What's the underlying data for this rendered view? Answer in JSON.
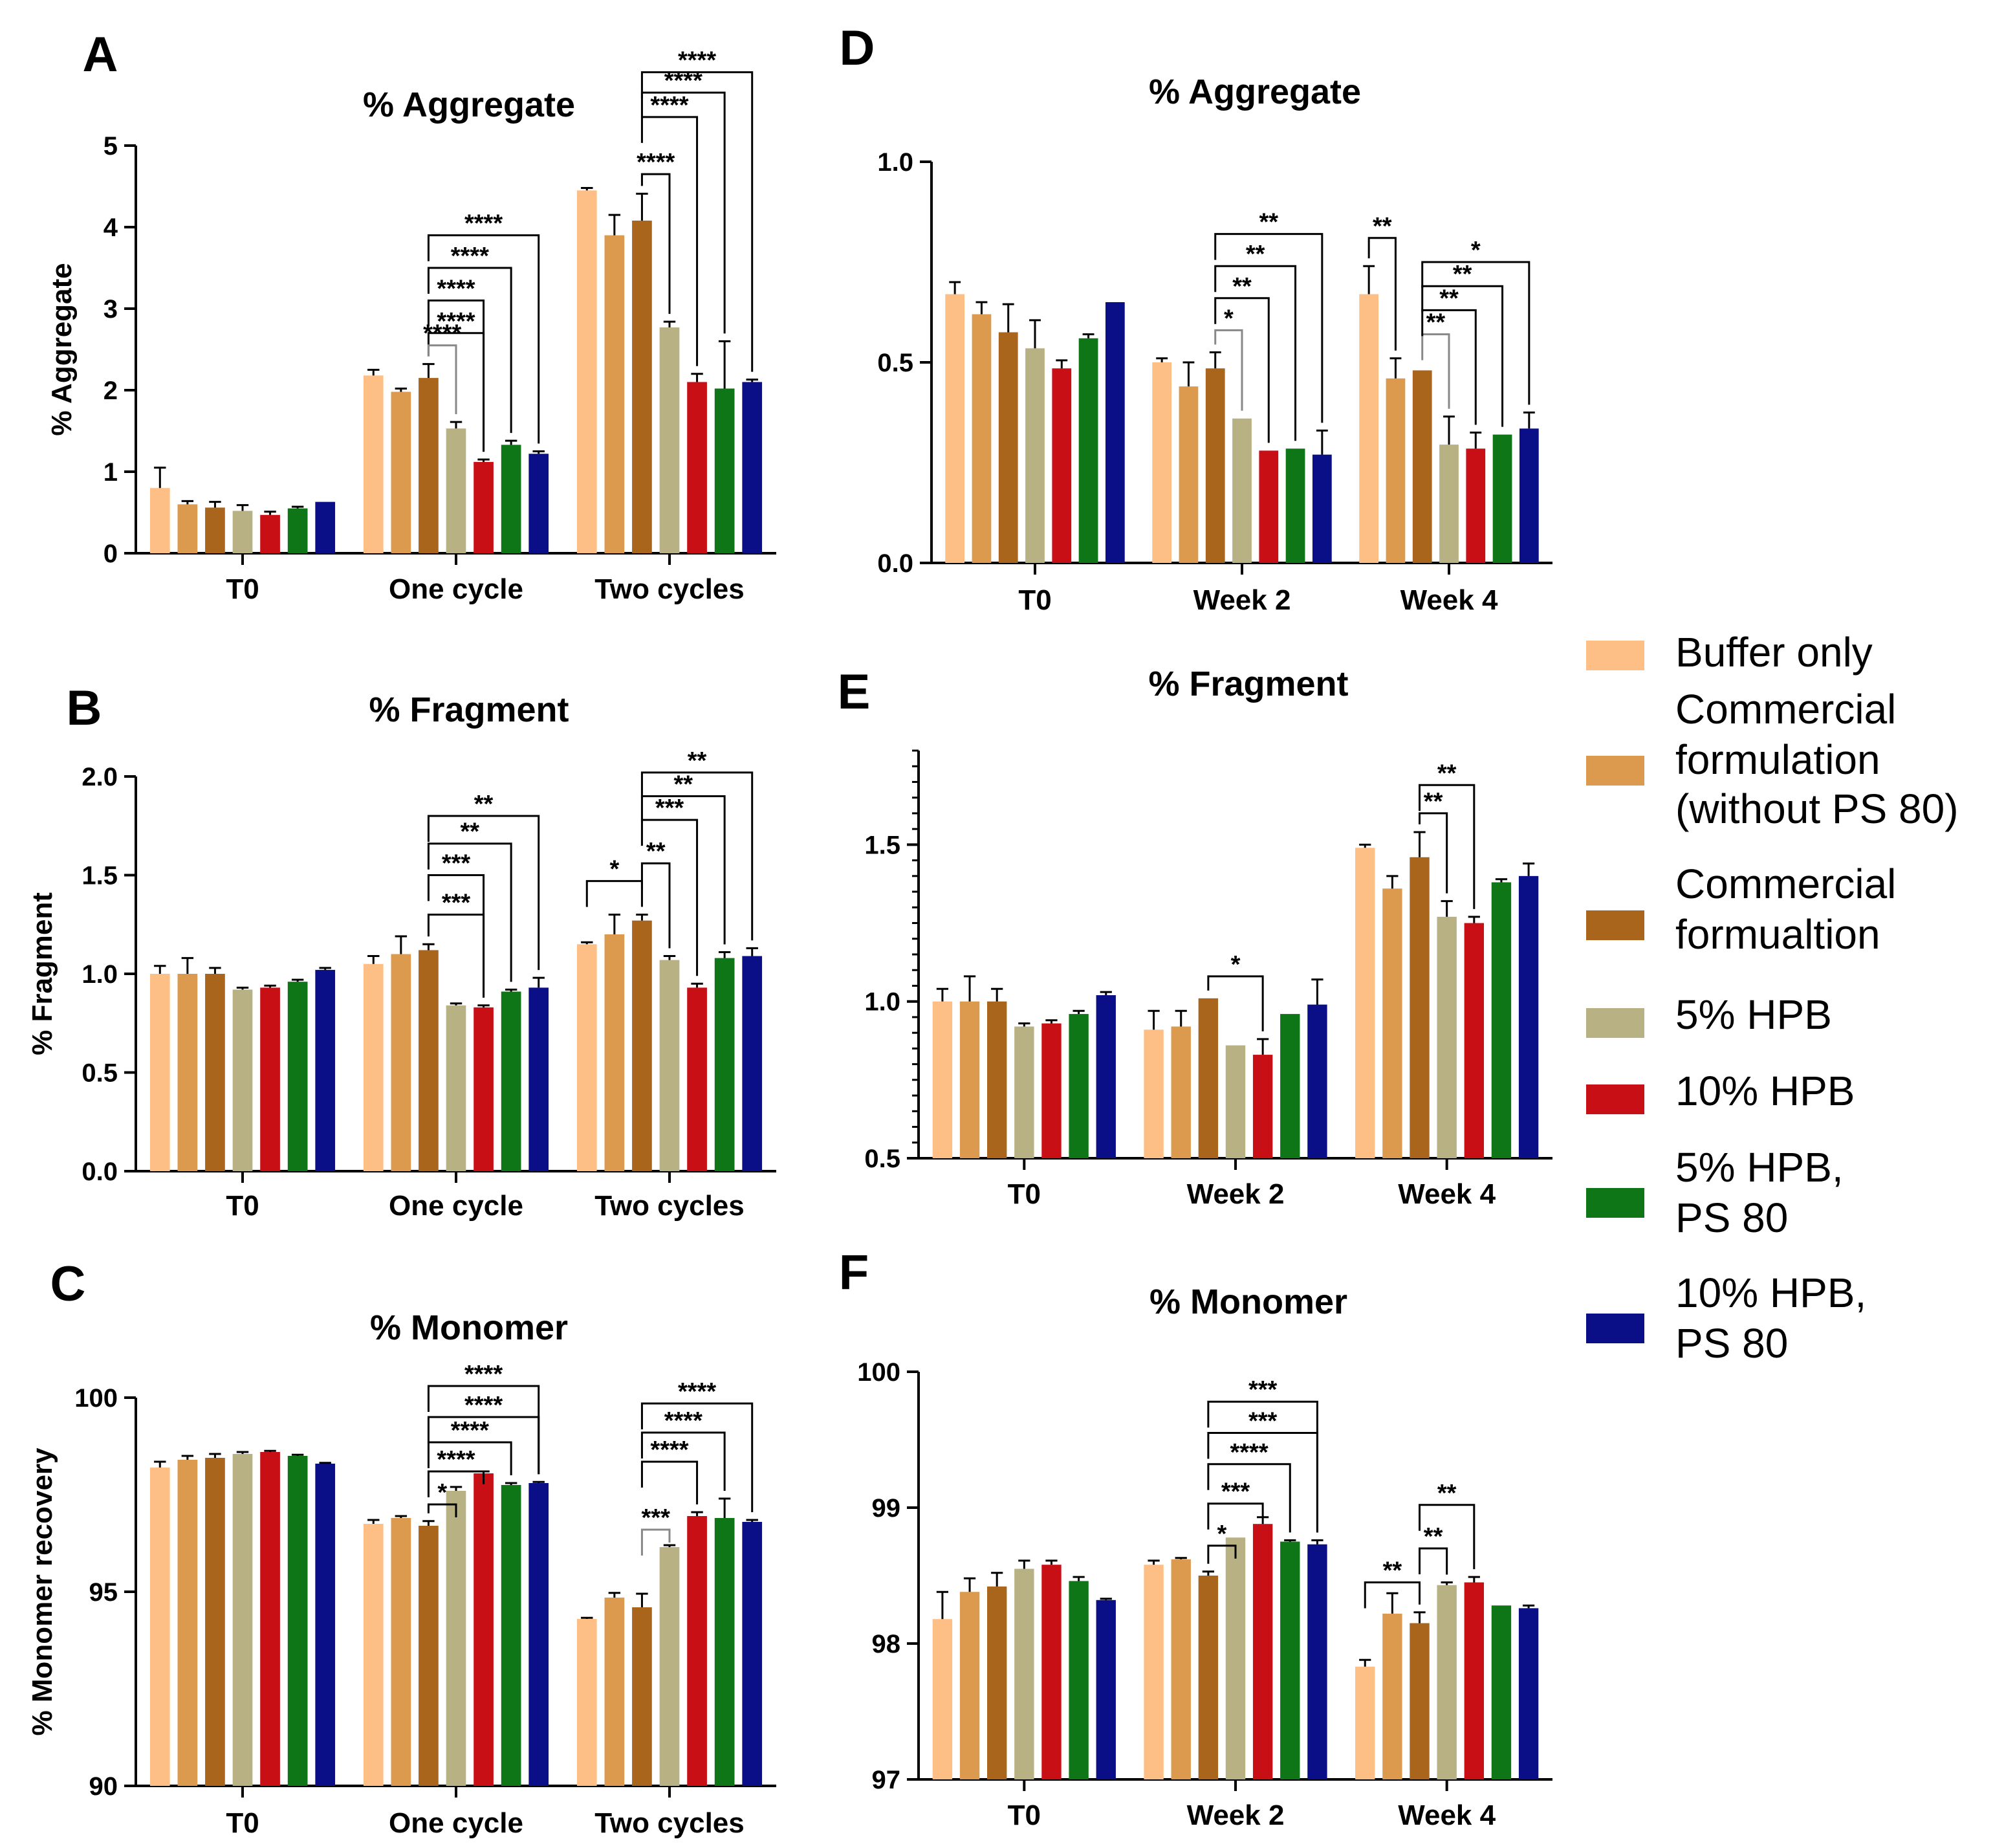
{
  "legend": [
    {
      "name": "Buffer only",
      "color": "#FDBF86"
    },
    {
      "name": "Commercial formulation (without PS 80)",
      "color": "#DC9A4E"
    },
    {
      "name": "Commercial formualtion",
      "color": "#A8651B"
    },
    {
      "name": "5% HPB",
      "color": "#B8B184"
    },
    {
      "name": "10% HPB",
      "color": "#C90F16"
    },
    {
      "name": "5% HPB, PS 80",
      "color": "#0E7616"
    },
    {
      "name": "10% HPB, PS 80",
      "color": "#0B0F87"
    }
  ],
  "legend_lines": [
    [
      "Buffer only"
    ],
    [
      "Commercial",
      "formulation",
      "(without PS 80)"
    ],
    [
      "Commercial",
      "formualtion"
    ],
    [
      "5% HPB"
    ],
    [
      "10% HPB"
    ],
    [
      "5% HPB,",
      "PS 80"
    ],
    [
      "10% HPB,",
      "PS 80"
    ]
  ],
  "chart_data": [
    {
      "panel": "A",
      "type": "bar",
      "title": "% Aggregate",
      "xlabel": "",
      "ylabel": "% Aggregate",
      "ylim": [
        0,
        5
      ],
      "yticks": [
        0,
        1,
        2,
        3,
        4,
        5
      ],
      "ytick_labels": [
        "0",
        "1",
        "2",
        "3",
        "4",
        "5"
      ],
      "categories": [
        "T0",
        "One cycle",
        "Two cycles"
      ],
      "series": [
        {
          "name": "Buffer only",
          "values": [
            0.8,
            2.18,
            4.45
          ],
          "errors": [
            0.25,
            0.07,
            0.03
          ]
        },
        {
          "name": "Commercial formulation (without PS 80)",
          "values": [
            0.6,
            1.98,
            3.9
          ],
          "errors": [
            0.04,
            0.04,
            0.25
          ]
        },
        {
          "name": "Commercial formualtion",
          "values": [
            0.56,
            2.15,
            4.08
          ],
          "errors": [
            0.07,
            0.17,
            0.33
          ]
        },
        {
          "name": "5% HPB",
          "values": [
            0.52,
            1.53,
            2.77
          ],
          "errors": [
            0.07,
            0.08,
            0.07
          ]
        },
        {
          "name": "10% HPB",
          "values": [
            0.47,
            1.12,
            2.1
          ],
          "errors": [
            0.04,
            0.03,
            0.1
          ]
        },
        {
          "name": "5% HPB, PS 80",
          "values": [
            0.55,
            1.33,
            2.02
          ],
          "errors": [
            0.02,
            0.05,
            0.58
          ]
        },
        {
          "name": "10% HPB, PS 80",
          "values": [
            0.63,
            1.22,
            2.1
          ],
          "errors": [
            0.0,
            0.03,
            0.03
          ]
        }
      ],
      "significance": [
        {
          "cat": 1,
          "from": 2,
          "to": 4,
          "label": "****",
          "y": 2.7
        },
        {
          "cat": 1,
          "from": 2,
          "to": 3,
          "label": "****",
          "y": 2.55,
          "gray": true
        },
        {
          "cat": 1,
          "from": 2,
          "to": 6,
          "label": "****",
          "y": 3.9
        },
        {
          "cat": 1,
          "from": 2,
          "to": 5,
          "label": "****",
          "y": 3.5
        },
        {
          "cat": 1,
          "from": 2,
          "to": 4,
          "label": "****",
          "y": 3.1
        },
        {
          "cat": 1,
          "from": 2,
          "to": 3,
          "label": "****",
          "y": 2.7,
          "hide": true
        },
        {
          "cat": 2,
          "from": 2,
          "to": 3,
          "label": "****",
          "y": 4.65
        },
        {
          "cat": 2,
          "from": 2,
          "to": 4,
          "label": "****",
          "y": 5.35
        },
        {
          "cat": 2,
          "from": 2,
          "to": 5,
          "label": "****",
          "y": 5.65
        },
        {
          "cat": 2,
          "from": 2,
          "to": 6,
          "label": "****",
          "y": 5.9
        }
      ]
    },
    {
      "panel": "B",
      "type": "bar",
      "title": "% Fragment",
      "xlabel": "",
      "ylabel": "% Fragment",
      "ylim": [
        0,
        2
      ],
      "yticks": [
        0,
        0.5,
        1,
        1.5,
        2
      ],
      "ytick_labels": [
        "0.0",
        "0.5",
        "1.0",
        "1.5",
        "2.0"
      ],
      "categories": [
        "T0",
        "One cycle",
        "Two cycles"
      ],
      "series": [
        {
          "name": "Buffer only",
          "values": [
            1.0,
            1.05,
            1.15
          ],
          "errors": [
            0.04,
            0.04,
            0.01
          ]
        },
        {
          "name": "Commercial formulation (without PS 80)",
          "values": [
            1.0,
            1.1,
            1.2
          ],
          "errors": [
            0.08,
            0.09,
            0.1
          ]
        },
        {
          "name": "Commercial formualtion",
          "values": [
            1.0,
            1.12,
            1.27
          ],
          "errors": [
            0.03,
            0.03,
            0.03
          ]
        },
        {
          "name": "5% HPB",
          "values": [
            0.92,
            0.84,
            1.07
          ],
          "errors": [
            0.01,
            0.01,
            0.02
          ]
        },
        {
          "name": "10% HPB",
          "values": [
            0.93,
            0.83,
            0.93
          ],
          "errors": [
            0.01,
            0.01,
            0.02
          ]
        },
        {
          "name": "5% HPB, PS 80",
          "values": [
            0.96,
            0.91,
            1.08
          ],
          "errors": [
            0.01,
            0.01,
            0.03
          ]
        },
        {
          "name": "10% HPB, PS 80",
          "values": [
            1.02,
            0.93,
            1.09
          ],
          "errors": [
            0.01,
            0.05,
            0.04
          ]
        }
      ],
      "significance": [
        {
          "cat": 1,
          "from": 2,
          "to": 4,
          "label": "***",
          "y": 1.3
        },
        {
          "cat": 1,
          "from": 2,
          "to": 4,
          "label": "***",
          "y": 1.5
        },
        {
          "cat": 1,
          "from": 2,
          "to": 5,
          "label": "**",
          "y": 1.66
        },
        {
          "cat": 1,
          "from": 2,
          "to": 6,
          "label": "**",
          "y": 1.8
        },
        {
          "cat": 2,
          "from": 0,
          "to": 2,
          "label": "*",
          "y": 1.47,
          "spanStart": true
        },
        {
          "cat": 2,
          "from": 2,
          "to": 3,
          "label": "**",
          "y": 1.56
        },
        {
          "cat": 2,
          "from": 2,
          "to": 4,
          "label": "***",
          "y": 1.78
        },
        {
          "cat": 2,
          "from": 2,
          "to": 5,
          "label": "**",
          "y": 1.9
        },
        {
          "cat": 2,
          "from": 2,
          "to": 6,
          "label": "**",
          "y": 2.02
        }
      ]
    },
    {
      "panel": "C",
      "type": "bar",
      "title": "% Monomer",
      "xlabel": "",
      "ylabel": "% Monomer recovery",
      "ylim": [
        90,
        100
      ],
      "yticks": [
        90,
        95,
        100
      ],
      "ytick_labels": [
        "90",
        "95",
        "100"
      ],
      "categories": [
        "T0",
        "One cycle",
        "Two cycles"
      ],
      "series": [
        {
          "name": "Buffer only",
          "values": [
            98.2,
            96.75,
            94.3
          ],
          "errors": [
            0.15,
            0.1,
            0.03
          ]
        },
        {
          "name": "Commercial formulation (without PS 80)",
          "values": [
            98.4,
            96.9,
            94.85
          ],
          "errors": [
            0.1,
            0.05,
            0.12
          ]
        },
        {
          "name": "Commercial formualtion",
          "values": [
            98.45,
            96.7,
            94.6
          ],
          "errors": [
            0.1,
            0.12,
            0.35
          ]
        },
        {
          "name": "5% HPB",
          "values": [
            98.55,
            97.6,
            96.15
          ],
          "errors": [
            0.05,
            0.1,
            0.05
          ]
        },
        {
          "name": "10% HPB",
          "values": [
            98.6,
            98.05,
            96.95
          ],
          "errors": [
            0.03,
            0.05,
            0.1
          ]
        },
        {
          "name": "5% HPB, PS 80",
          "values": [
            98.5,
            97.75,
            96.9
          ],
          "errors": [
            0.03,
            0.05,
            0.5
          ]
        },
        {
          "name": "10% HPB, PS 80",
          "values": [
            98.3,
            97.8,
            96.8
          ],
          "errors": [
            0.02,
            0.03,
            0.05
          ]
        }
      ],
      "significance": [
        {
          "cat": 1,
          "from": 2,
          "to": 3,
          "label": "*",
          "y": 97.25,
          "rev": true
        },
        {
          "cat": 1,
          "from": 2,
          "to": 4,
          "label": "****",
          "y": 98.1
        },
        {
          "cat": 1,
          "from": 2,
          "to": 5,
          "label": "****",
          "y": 98.85
        },
        {
          "cat": 1,
          "from": 2,
          "to": 6,
          "label": "****",
          "y": 99.5
        },
        {
          "cat": 1,
          "from": 2,
          "to": 7,
          "label": "****",
          "y": 100.3
        },
        {
          "cat": 2,
          "from": 2,
          "to": 3,
          "label": "***",
          "y": 96.6,
          "gray": true
        },
        {
          "cat": 2,
          "from": 2,
          "to": 4,
          "label": "****",
          "y": 98.35
        },
        {
          "cat": 2,
          "from": 2,
          "to": 5,
          "label": "****",
          "y": 99.1
        },
        {
          "cat": 2,
          "from": 2,
          "to": 6,
          "label": "****",
          "y": 99.85
        }
      ]
    },
    {
      "panel": "D",
      "type": "bar",
      "title": "% Aggregate",
      "xlabel": "",
      "ylabel": "",
      "ylim": [
        0,
        1
      ],
      "yticks": [
        0,
        0.5,
        1
      ],
      "ytick_labels": [
        "0.0",
        "0.5",
        "1.0"
      ],
      "categories": [
        "T0",
        "Week 2",
        "Week 4"
      ],
      "series": [
        {
          "name": "Buffer only",
          "values": [
            0.67,
            0.5,
            0.67
          ],
          "errors": [
            0.03,
            0.01,
            0.07
          ]
        },
        {
          "name": "Commercial formulation (without PS 80)",
          "values": [
            0.62,
            0.44,
            0.46
          ],
          "errors": [
            0.03,
            0.06,
            0.05
          ]
        },
        {
          "name": "Commercial formualtion",
          "values": [
            0.575,
            0.485,
            0.48
          ],
          "errors": [
            0.07,
            0.04,
            0.0
          ]
        },
        {
          "name": "5% HPB",
          "values": [
            0.535,
            0.36,
            0.295
          ],
          "errors": [
            0.07,
            0.0,
            0.07
          ]
        },
        {
          "name": "10% HPB",
          "values": [
            0.485,
            0.28,
            0.285
          ],
          "errors": [
            0.02,
            0.0,
            0.04
          ]
        },
        {
          "name": "5% HPB, PS 80",
          "values": [
            0.56,
            0.285,
            0.32
          ],
          "errors": [
            0.01,
            0.0,
            0.0
          ]
        },
        {
          "name": "10% HPB, PS 80",
          "values": [
            0.65,
            0.27,
            0.335
          ],
          "errors": [
            0.0,
            0.06,
            0.04
          ]
        }
      ],
      "significance": [
        {
          "cat": 1,
          "from": 2,
          "to": 3,
          "label": "*",
          "y": 0.58,
          "gray": true
        },
        {
          "cat": 1,
          "from": 2,
          "to": 4,
          "label": "**",
          "y": 0.66
        },
        {
          "cat": 1,
          "from": 2,
          "to": 5,
          "label": "**",
          "y": 0.74
        },
        {
          "cat": 1,
          "from": 2,
          "to": 6,
          "label": "**",
          "y": 0.82
        },
        {
          "cat": 2,
          "from": 0,
          "to": 1,
          "label": "**",
          "y": 0.81
        },
        {
          "cat": 2,
          "from": 2,
          "to": 3,
          "label": "**",
          "y": 0.57,
          "gray": true
        },
        {
          "cat": 2,
          "from": 2,
          "to": 4,
          "label": "**",
          "y": 0.63
        },
        {
          "cat": 2,
          "from": 2,
          "to": 5,
          "label": "**",
          "y": 0.69
        },
        {
          "cat": 2,
          "from": 2,
          "to": 6,
          "label": "*",
          "y": 0.75
        }
      ]
    },
    {
      "panel": "E",
      "type": "bar",
      "title": "% Fragment",
      "xlabel": "",
      "ylabel": "",
      "ylim": [
        0.5,
        1.8
      ],
      "yticks": [
        0.5,
        1,
        1.5
      ],
      "ytick_labels": [
        "0.5",
        "1.0",
        "1.5"
      ],
      "categories": [
        "T0",
        "Week 2",
        "Week 4"
      ],
      "series": [
        {
          "name": "Buffer only",
          "values": [
            1.0,
            0.91,
            1.49
          ],
          "errors": [
            0.04,
            0.06,
            0.01
          ]
        },
        {
          "name": "Commercial formulation (without PS 80)",
          "values": [
            1.0,
            0.92,
            1.36
          ],
          "errors": [
            0.08,
            0.05,
            0.04
          ]
        },
        {
          "name": "Commercial formualtion",
          "values": [
            1.0,
            1.01,
            1.46
          ],
          "errors": [
            0.04,
            0.0,
            0.08
          ]
        },
        {
          "name": "5% HPB",
          "values": [
            0.92,
            0.86,
            1.27
          ],
          "errors": [
            0.01,
            0.0,
            0.05
          ]
        },
        {
          "name": "10% HPB",
          "values": [
            0.93,
            0.83,
            1.25
          ],
          "errors": [
            0.01,
            0.05,
            0.02
          ]
        },
        {
          "name": "5% HPB, PS 80",
          "values": [
            0.96,
            0.96,
            1.38
          ],
          "errors": [
            0.01,
            0.0,
            0.01
          ]
        },
        {
          "name": "10% HPB, PS 80",
          "values": [
            1.02,
            0.99,
            1.4
          ],
          "errors": [
            0.01,
            0.08,
            0.04
          ]
        }
      ],
      "significance": [
        {
          "cat": 1,
          "from": 2,
          "to": 4,
          "label": "*",
          "y": 1.08
        },
        {
          "cat": 2,
          "from": 2,
          "to": 3,
          "label": "**",
          "y": 1.6
        },
        {
          "cat": 2,
          "from": 2,
          "to": 4,
          "label": "**",
          "y": 1.69
        }
      ]
    },
    {
      "panel": "F",
      "type": "bar",
      "title": "% Monomer",
      "xlabel": "",
      "ylabel": "",
      "ylim": [
        97,
        100
      ],
      "yticks": [
        97,
        98,
        99,
        100
      ],
      "ytick_labels": [
        "97",
        "98",
        "99",
        "100"
      ],
      "categories": [
        "T0",
        "Week 2",
        "Week 4"
      ],
      "series": [
        {
          "name": "Buffer only",
          "values": [
            98.18,
            98.58,
            97.83
          ],
          "errors": [
            0.2,
            0.03,
            0.05
          ]
        },
        {
          "name": "Commercial formulation (without PS 80)",
          "values": [
            98.38,
            98.62,
            98.22
          ],
          "errors": [
            0.1,
            0.01,
            0.15
          ]
        },
        {
          "name": "Commercial formualtion",
          "values": [
            98.42,
            98.5,
            98.15
          ],
          "errors": [
            0.1,
            0.03,
            0.08
          ]
        },
        {
          "name": "5% HPB",
          "values": [
            98.55,
            98.78,
            98.43
          ],
          "errors": [
            0.06,
            0.0,
            0.02
          ]
        },
        {
          "name": "10% HPB",
          "values": [
            98.58,
            98.88,
            98.45
          ],
          "errors": [
            0.03,
            0.05,
            0.04
          ]
        },
        {
          "name": "5% HPB, PS 80",
          "values": [
            98.46,
            98.75,
            98.28
          ],
          "errors": [
            0.03,
            0.01,
            0.0
          ]
        },
        {
          "name": "10% HPB, PS 80",
          "values": [
            98.32,
            98.73,
            98.26
          ],
          "errors": [
            0.01,
            0.03,
            0.02
          ]
        }
      ],
      "significance": [
        {
          "cat": 1,
          "from": 2,
          "to": 3,
          "label": "*",
          "y": 98.72,
          "rev": true
        },
        {
          "cat": 1,
          "from": 2,
          "to": 4,
          "label": "***",
          "y": 99.03
        },
        {
          "cat": 1,
          "from": 2,
          "to": 5,
          "label": "****",
          "y": 99.32
        },
        {
          "cat": 1,
          "from": 2,
          "to": 6,
          "label": "***",
          "y": 99.55
        },
        {
          "cat": 1,
          "from": 2,
          "to": 7,
          "label": "***",
          "y": 99.78
        },
        {
          "cat": 2,
          "from": 0,
          "to": 2,
          "label": "**",
          "y": 98.45
        },
        {
          "cat": 2,
          "from": 2,
          "to": 3,
          "label": "**",
          "y": 98.7
        },
        {
          "cat": 2,
          "from": 2,
          "to": 4,
          "label": "**",
          "y": 99.02
        }
      ]
    }
  ]
}
